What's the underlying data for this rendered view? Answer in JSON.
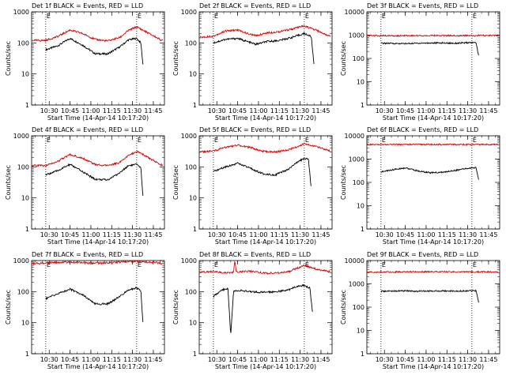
{
  "figure": {
    "xlabel": "Start Time (14-Apr-14 10:17:20)",
    "ylabel": "Counts/sec",
    "xticks": [
      "10:30",
      "10:45",
      "11:00",
      "11:15",
      "11:30",
      "11:45"
    ],
    "yticks": [
      "1",
      "10",
      "100",
      "1000",
      "10000"
    ],
    "marker_labels": [
      "E",
      "E"
    ],
    "colors": {
      "events": "#000000",
      "lld": "#dd0000",
      "background": "#ffffff"
    }
  },
  "chart_data": [
    {
      "type": "line",
      "title": "Det 1f BLACK = Events, RED = LLD",
      "ylim": [
        1,
        1000
      ],
      "yscale": "log",
      "xlim": [
        "10:17:20",
        "11:53:00"
      ],
      "markers_x": [
        "10:27:30",
        "11:33:00"
      ],
      "series": [
        {
          "name": "Events",
          "x": [
            "10:27:30",
            "10:36:00",
            "10:45:00",
            "10:54:00",
            "11:03:00",
            "11:12:00",
            "11:21:00",
            "11:27:00",
            "11:33:00",
            "11:36:00",
            "11:37:30"
          ],
          "values": [
            60,
            80,
            140,
            85,
            45,
            44,
            75,
            125,
            140,
            100,
            20
          ]
        },
        {
          "name": "LLD",
          "x": [
            "10:17:20",
            "10:27:30",
            "10:36:00",
            "10:45:00",
            "10:54:00",
            "11:03:00",
            "11:12:00",
            "11:21:00",
            "11:27:00",
            "11:33:00",
            "11:42:00",
            "11:52:00"
          ],
          "values": [
            120,
            120,
            160,
            260,
            200,
            130,
            115,
            150,
            250,
            330,
            200,
            115
          ]
        }
      ]
    },
    {
      "type": "line",
      "title": "Det 2f BLACK = Events, RED = LLD",
      "ylim": [
        1,
        1000
      ],
      "yscale": "log",
      "xlim": [
        "10:17:20",
        "11:53:00"
      ],
      "markers_x": [
        "10:27:30",
        "11:33:00"
      ],
      "series": [
        {
          "name": "Events",
          "x": [
            "10:27:30",
            "10:36:00",
            "10:45:00",
            "10:52:00",
            "10:58:00",
            "11:06:00",
            "11:15:00",
            "11:24:00",
            "11:33:00",
            "11:38:00",
            "11:40:00"
          ],
          "values": [
            100,
            130,
            140,
            110,
            90,
            110,
            120,
            150,
            200,
            160,
            20
          ]
        },
        {
          "name": "LLD",
          "x": [
            "10:17:20",
            "10:27:30",
            "10:36:00",
            "10:45:00",
            "10:52:00",
            "10:58:00",
            "11:06:00",
            "11:15:00",
            "11:24:00",
            "11:33:00",
            "11:42:00",
            "11:52:00"
          ],
          "values": [
            150,
            165,
            240,
            260,
            200,
            170,
            210,
            230,
            280,
            350,
            250,
            160
          ]
        }
      ]
    },
    {
      "type": "line",
      "title": "Det 3f BLACK = Events, RED = LLD",
      "ylim": [
        1,
        10000
      ],
      "yscale": "log",
      "xlim": [
        "10:17:20",
        "11:53:00"
      ],
      "markers_x": [
        "10:27:30",
        "11:33:00"
      ],
      "series": [
        {
          "name": "Events",
          "x": [
            "10:27:30",
            "10:36:00",
            "10:45:00",
            "10:54:00",
            "11:03:00",
            "11:12:00",
            "11:21:00",
            "11:30:00",
            "11:36:00",
            "11:38:00"
          ],
          "values": [
            450,
            440,
            430,
            450,
            460,
            460,
            450,
            470,
            480,
            120
          ]
        },
        {
          "name": "LLD",
          "x": [
            "10:17:20",
            "10:36:00",
            "10:54:00",
            "11:12:00",
            "11:30:00",
            "11:52:00"
          ],
          "values": [
            950,
            940,
            950,
            960,
            950,
            970
          ]
        }
      ]
    },
    {
      "type": "line",
      "title": "Det 4f BLACK = Events, RED = LLD",
      "ylim": [
        1,
        1000
      ],
      "yscale": "log",
      "xlim": [
        "10:17:20",
        "11:53:00"
      ],
      "markers_x": [
        "10:27:30",
        "11:33:00"
      ],
      "series": [
        {
          "name": "Events",
          "x": [
            "10:27:30",
            "10:36:00",
            "10:45:00",
            "10:54:00",
            "11:03:00",
            "11:12:00",
            "11:21:00",
            "11:27:00",
            "11:33:00",
            "11:36:00",
            "11:37:30"
          ],
          "values": [
            55,
            75,
            120,
            70,
            40,
            38,
            65,
            110,
            120,
            90,
            12
          ]
        },
        {
          "name": "LLD",
          "x": [
            "10:17:20",
            "10:27:30",
            "10:36:00",
            "10:45:00",
            "10:54:00",
            "11:03:00",
            "11:12:00",
            "11:21:00",
            "11:27:00",
            "11:33:00",
            "11:42:00",
            "11:52:00"
          ],
          "values": [
            110,
            110,
            150,
            250,
            190,
            120,
            110,
            140,
            230,
            320,
            190,
            110
          ]
        }
      ]
    },
    {
      "type": "line",
      "title": "Det 5f BLACK = Events, RED = LLD",
      "ylim": [
        1,
        1000
      ],
      "yscale": "log",
      "xlim": [
        "10:17:20",
        "11:53:00"
      ],
      "markers_x": [
        "10:27:30",
        "11:33:00"
      ],
      "series": [
        {
          "name": "Events",
          "x": [
            "10:27:30",
            "10:36:00",
            "10:45:00",
            "10:54:00",
            "11:03:00",
            "11:12:00",
            "11:21:00",
            "11:27:00",
            "11:33:00",
            "11:36:00",
            "11:38:00"
          ],
          "values": [
            70,
            100,
            130,
            90,
            60,
            55,
            80,
            130,
            190,
            170,
            20
          ]
        },
        {
          "name": "LLD",
          "x": [
            "10:17:20",
            "10:27:30",
            "10:36:00",
            "10:45:00",
            "10:54:00",
            "11:03:00",
            "11:12:00",
            "11:21:00",
            "11:27:00",
            "11:33:00",
            "11:42:00",
            "11:52:00"
          ],
          "values": [
            300,
            320,
            420,
            500,
            420,
            320,
            300,
            350,
            430,
            550,
            450,
            320
          ]
        }
      ]
    },
    {
      "type": "line",
      "title": "Det 6f BLACK = Events, RED = LLD",
      "ylim": [
        1,
        10000
      ],
      "yscale": "log",
      "xlim": [
        "10:17:20",
        "11:53:00"
      ],
      "markers_x": [
        "10:27:30",
        "11:33:00"
      ],
      "series": [
        {
          "name": "Events",
          "x": [
            "10:27:30",
            "10:36:00",
            "10:45:00",
            "10:54:00",
            "11:03:00",
            "11:12:00",
            "11:21:00",
            "11:30:00",
            "11:36:00",
            "11:38:00"
          ],
          "values": [
            280,
            350,
            420,
            310,
            260,
            270,
            330,
            400,
            430,
            120
          ]
        },
        {
          "name": "LLD",
          "x": [
            "10:17:20",
            "10:54:00",
            "11:30:00",
            "11:52:00"
          ],
          "values": [
            4200,
            4250,
            4200,
            4250
          ]
        }
      ]
    },
    {
      "type": "line",
      "title": "Det 7f BLACK = Events, RED = LLD",
      "ylim": [
        1,
        1000
      ],
      "yscale": "log",
      "xlim": [
        "10:17:20",
        "11:53:00"
      ],
      "markers_x": [
        "10:27:30",
        "11:33:00"
      ],
      "series": [
        {
          "name": "Events",
          "x": [
            "10:27:30",
            "10:36:00",
            "10:45:00",
            "10:54:00",
            "11:03:00",
            "11:12:00",
            "11:21:00",
            "11:27:00",
            "11:33:00",
            "11:36:00",
            "11:37:30"
          ],
          "values": [
            60,
            85,
            120,
            80,
            40,
            40,
            70,
            115,
            130,
            110,
            10
          ]
        },
        {
          "name": "LLD",
          "x": [
            "10:17:20",
            "10:30:00",
            "10:45:00",
            "11:00:00",
            "11:15:00",
            "11:30:00",
            "11:45:00",
            "11:52:00"
          ],
          "values": [
            800,
            850,
            900,
            820,
            860,
            950,
            880,
            780
          ]
        }
      ]
    },
    {
      "type": "line",
      "title": "Det 8f BLACK = Events, RED = LLD",
      "ylim": [
        1,
        1000
      ],
      "yscale": "log",
      "xlim": [
        "10:17:20",
        "11:53:00"
      ],
      "markers_x": [
        "10:27:30",
        "11:33:00"
      ],
      "series": [
        {
          "name": "Events",
          "x": [
            "10:27:30",
            "10:33:00",
            "10:36:00",
            "10:38:00",
            "10:40:00",
            "10:42:00",
            "10:45:00",
            "10:54:00",
            "11:03:00",
            "11:12:00",
            "11:21:00",
            "11:28:00",
            "11:33:00",
            "11:37:00",
            "11:39:00"
          ],
          "values": [
            70,
            110,
            120,
            130,
            4,
            100,
            110,
            100,
            95,
            100,
            110,
            150,
            160,
            130,
            20
          ]
        },
        {
          "name": "LLD",
          "x": [
            "10:17:20",
            "10:27:30",
            "10:36:00",
            "10:42:00",
            "10:43:00",
            "10:44:00",
            "10:54:00",
            "11:03:00",
            "11:12:00",
            "11:21:00",
            "11:27:00",
            "11:33:00",
            "11:42:00",
            "11:52:00"
          ],
          "values": [
            420,
            440,
            400,
            420,
            1000,
            420,
            460,
            400,
            390,
            430,
            550,
            700,
            520,
            430
          ]
        }
      ]
    },
    {
      "type": "line",
      "title": "Det 9f BLACK = Events, RED = LLD",
      "ylim": [
        1,
        10000
      ],
      "yscale": "log",
      "xlim": [
        "10:17:20",
        "11:53:00"
      ],
      "markers_x": [
        "10:27:30",
        "11:33:00"
      ],
      "series": [
        {
          "name": "Events",
          "x": [
            "10:27:30",
            "10:36:00",
            "10:45:00",
            "10:54:00",
            "11:03:00",
            "11:12:00",
            "11:21:00",
            "11:30:00",
            "11:36:00",
            "11:38:00"
          ],
          "values": [
            480,
            490,
            500,
            480,
            490,
            500,
            490,
            500,
            510,
            150
          ]
        },
        {
          "name": "LLD",
          "x": [
            "10:17:20",
            "10:54:00",
            "11:30:00",
            "11:52:00"
          ],
          "values": [
            3200,
            3300,
            3250,
            3300
          ]
        }
      ]
    }
  ]
}
